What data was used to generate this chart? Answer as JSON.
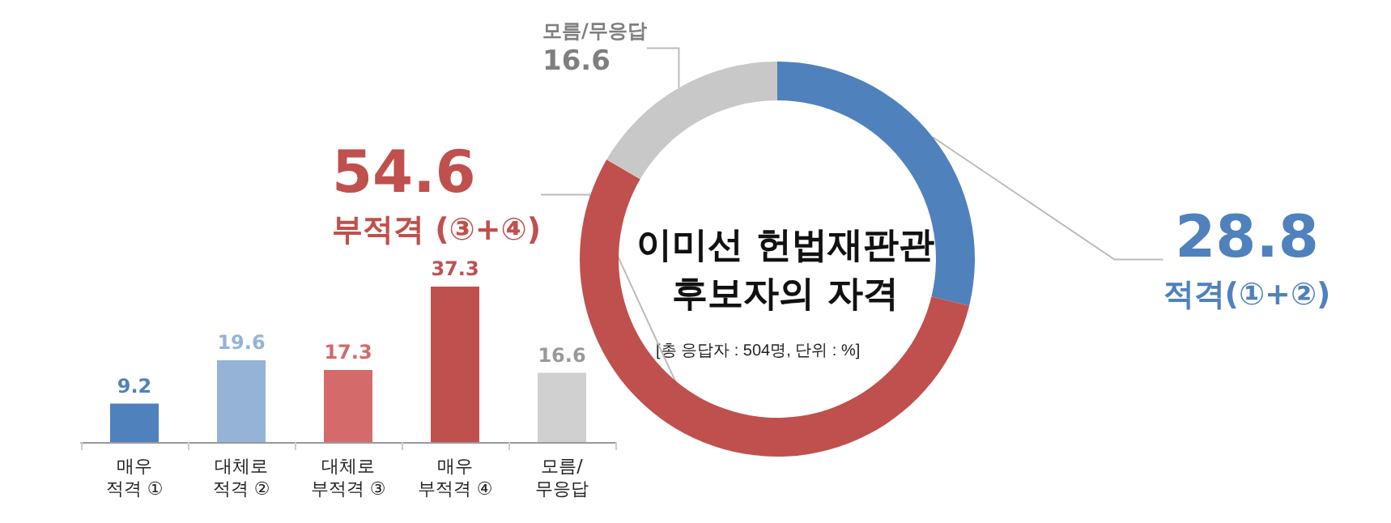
{
  "chart_data": [
    {
      "type": "bar",
      "categories": [
        "매우\n적격 ①",
        "대체로\n적격 ②",
        "대체로\n부적격 ③",
        "매우\n부적격 ④",
        "모름/\n무응답"
      ],
      "values": [
        9.2,
        19.6,
        17.3,
        37.3,
        16.6
      ],
      "colors": [
        "#4f81bd",
        "#95b3d7",
        "#d46a6a",
        "#c0504d",
        "#d0d0d0"
      ],
      "data_labels": true,
      "tick_labels": "x"
    },
    {
      "type": "donut",
      "title": "이미선 헌법재판관\n후보자의 자격",
      "annotations": [
        "[총 응답자 : 504명, 단위 : %]"
      ],
      "categories": [
        "적격(①+②)",
        "부적격 (③+④)",
        "모름/무응답"
      ],
      "values": [
        28.8,
        54.6,
        16.6
      ],
      "colors": [
        "#4f81bd",
        "#c0504d",
        "#c8c8c8"
      ],
      "data_labels": true
    }
  ]
}
